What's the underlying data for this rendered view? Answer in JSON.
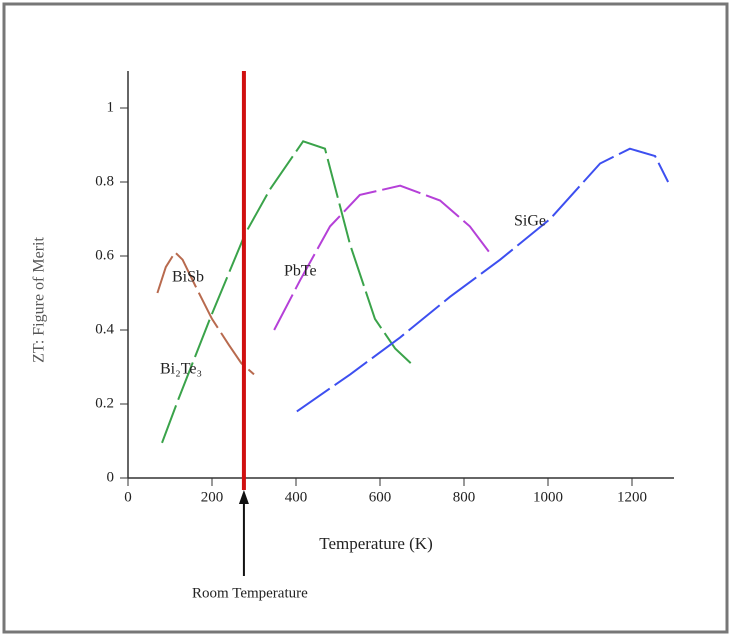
{
  "chart_data": {
    "type": "line",
    "x_label": "Temperature (K)",
    "y_label": "ZT: Figure of Merit",
    "xlim": [
      0,
      1300
    ],
    "xticks": [
      0,
      200,
      400,
      600,
      800,
      1000,
      1200
    ],
    "ylim": [
      0,
      1.1
    ],
    "yticks": [
      0,
      0.2,
      0.4,
      0.6,
      0.8,
      1
    ],
    "series": [
      {
        "name": "BiSb",
        "color": "#b86a4e",
        "x": [
          70,
          90,
          112,
          130,
          160,
          200,
          240,
          270,
          300
        ],
        "values": [
          0.5,
          0.57,
          0.61,
          0.59,
          0.52,
          0.43,
          0.36,
          0.31,
          0.28
        ]
      },
      {
        "name": "Bi₂Te₃",
        "color": "#3aa34a",
        "x": [
          81,
          119,
          195,
          279,
          338,
          417,
          469,
          529,
          588,
          636,
          683
        ],
        "values": [
          0.095,
          0.21,
          0.43,
          0.66,
          0.78,
          0.91,
          0.89,
          0.63,
          0.43,
          0.35,
          0.3
        ]
      },
      {
        "name": "PbTe",
        "color": "#b540d8",
        "x": [
          348,
          410,
          481,
          552,
          648,
          743,
          814,
          867
        ],
        "values": [
          0.4,
          0.535,
          0.68,
          0.765,
          0.79,
          0.75,
          0.68,
          0.6
        ]
      },
      {
        "name": "SiGe",
        "color": "#3d4ff0",
        "x": [
          402,
          529,
          648,
          767,
          886,
          1005,
          1124,
          1195,
          1255,
          1286
        ],
        "values": [
          0.18,
          0.28,
          0.38,
          0.49,
          0.59,
          0.7,
          0.85,
          0.89,
          0.87,
          0.8
        ]
      }
    ],
    "reference_line": {
      "x": 276,
      "label": "Room Temperature",
      "color": "#d01010"
    }
  }
}
